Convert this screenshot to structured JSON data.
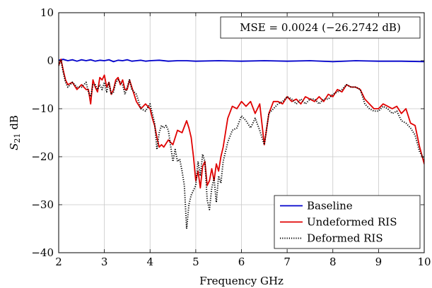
{
  "chart_data": {
    "type": "line",
    "xlabel": "Frequency GHz",
    "ylabel_main": "S",
    "ylabel_sub": "21",
    "ylabel_unit": " dB",
    "xlim": [
      2,
      10
    ],
    "ylim": [
      -40,
      10
    ],
    "x_ticks": [
      2,
      3,
      4,
      5,
      6,
      7,
      8,
      9,
      10
    ],
    "y_ticks": [
      -40,
      -30,
      -20,
      -10,
      0,
      10
    ],
    "x_tick_labels": [
      "2",
      "3",
      "4",
      "5",
      "6",
      "7",
      "8",
      "9",
      "10"
    ],
    "y_tick_labels": [
      "−40",
      "−30",
      "−20",
      "−10",
      "0",
      "10"
    ],
    "grid": true,
    "legend_position": "bottom-right",
    "annotation": "MSE = 0.0024 (−26.2742 dB)",
    "series": [
      {
        "name": "Baseline",
        "color": "#0000cc",
        "style": "solid",
        "x": [
          2.0,
          2.1,
          2.2,
          2.3,
          2.4,
          2.5,
          2.6,
          2.7,
          2.8,
          2.9,
          3.0,
          3.1,
          3.2,
          3.3,
          3.4,
          3.5,
          3.6,
          3.7,
          3.8,
          3.9,
          4.0,
          4.2,
          4.4,
          4.6,
          4.8,
          5.0,
          5.5,
          6.0,
          6.5,
          7.0,
          7.5,
          8.0,
          8.5,
          9.0,
          9.5,
          10.0
        ],
        "y": [
          0.1,
          0.3,
          0.0,
          0.2,
          -0.1,
          0.2,
          0.0,
          0.2,
          -0.1,
          0.1,
          0.0,
          0.2,
          -0.2,
          0.1,
          0.0,
          0.2,
          -0.1,
          0.0,
          0.1,
          -0.1,
          0.0,
          0.1,
          -0.1,
          0.0,
          0.0,
          -0.1,
          0.0,
          -0.1,
          0.0,
          -0.1,
          0.0,
          -0.2,
          0.0,
          -0.1,
          -0.1,
          -0.2
        ]
      },
      {
        "name": "Undeformed RIS",
        "color": "#e00000",
        "style": "solid",
        "x": [
          2.0,
          2.05,
          2.1,
          2.15,
          2.2,
          2.3,
          2.4,
          2.5,
          2.6,
          2.65,
          2.7,
          2.75,
          2.8,
          2.85,
          2.9,
          2.95,
          3.0,
          3.05,
          3.1,
          3.15,
          3.2,
          3.25,
          3.3,
          3.35,
          3.4,
          3.45,
          3.5,
          3.55,
          3.6,
          3.7,
          3.8,
          3.9,
          4.0,
          4.05,
          4.1,
          4.15,
          4.2,
          4.25,
          4.3,
          4.4,
          4.5,
          4.6,
          4.7,
          4.8,
          4.85,
          4.9,
          4.95,
          5.0,
          5.05,
          5.1,
          5.15,
          5.2,
          5.25,
          5.3,
          5.35,
          5.4,
          5.45,
          5.5,
          5.55,
          5.6,
          5.7,
          5.8,
          5.9,
          6.0,
          6.1,
          6.2,
          6.3,
          6.4,
          6.5,
          6.6,
          6.7,
          6.8,
          6.9,
          7.0,
          7.1,
          7.2,
          7.3,
          7.4,
          7.5,
          7.6,
          7.7,
          7.8,
          7.9,
          8.0,
          8.1,
          8.2,
          8.3,
          8.4,
          8.5,
          8.6,
          8.7,
          8.8,
          8.9,
          9.0,
          9.1,
          9.2,
          9.3,
          9.4,
          9.5,
          9.6,
          9.7,
          9.8,
          9.9,
          10.0
        ],
        "y": [
          -1.0,
          0.3,
          -2.0,
          -4.0,
          -5.0,
          -4.5,
          -6.0,
          -5.0,
          -6.0,
          -6.0,
          -9.0,
          -4.0,
          -5.5,
          -6.5,
          -3.5,
          -4.0,
          -3.0,
          -5.5,
          -4.5,
          -7.0,
          -6.0,
          -4.0,
          -3.5,
          -5.0,
          -4.0,
          -6.0,
          -6.0,
          -4.0,
          -5.5,
          -8.5,
          -10.0,
          -9.0,
          -10.0,
          -12.0,
          -13.5,
          -16.0,
          -18.0,
          -17.5,
          -18.0,
          -16.5,
          -17.5,
          -14.5,
          -15.0,
          -12.5,
          -14.0,
          -16.0,
          -20.0,
          -25.0,
          -23.0,
          -26.5,
          -22.0,
          -21.0,
          -26.0,
          -25.0,
          -22.5,
          -25.0,
          -21.5,
          -23.0,
          -20.0,
          -18.0,
          -12.0,
          -9.5,
          -10.0,
          -8.5,
          -9.5,
          -8.5,
          -11.0,
          -9.0,
          -17.5,
          -11.0,
          -8.5,
          -8.5,
          -9.0,
          -7.5,
          -8.5,
          -8.0,
          -9.0,
          -7.5,
          -8.0,
          -8.5,
          -7.5,
          -8.5,
          -7.0,
          -7.5,
          -6.0,
          -6.5,
          -5.0,
          -5.5,
          -5.5,
          -6.0,
          -8.0,
          -9.0,
          -10.0,
          -10.0,
          -9.0,
          -9.5,
          -10.0,
          -9.5,
          -11.0,
          -10.0,
          -13.0,
          -13.5,
          -18.0,
          -21.5
        ]
      },
      {
        "name": "Deformed RIS",
        "color": "#000000",
        "style": "dotted",
        "x": [
          2.0,
          2.05,
          2.1,
          2.15,
          2.2,
          2.3,
          2.4,
          2.5,
          2.6,
          2.65,
          2.7,
          2.75,
          2.8,
          2.85,
          2.9,
          2.95,
          3.0,
          3.05,
          3.1,
          3.15,
          3.2,
          3.25,
          3.3,
          3.35,
          3.4,
          3.45,
          3.5,
          3.55,
          3.6,
          3.7,
          3.8,
          3.9,
          4.0,
          4.05,
          4.1,
          4.15,
          4.2,
          4.25,
          4.3,
          4.35,
          4.4,
          4.5,
          4.55,
          4.6,
          4.65,
          4.7,
          4.75,
          4.8,
          4.85,
          4.9,
          4.95,
          5.0,
          5.05,
          5.1,
          5.15,
          5.2,
          5.25,
          5.3,
          5.35,
          5.4,
          5.45,
          5.5,
          5.55,
          5.6,
          5.7,
          5.8,
          5.9,
          6.0,
          6.1,
          6.2,
          6.3,
          6.4,
          6.5,
          6.6,
          6.7,
          6.8,
          6.9,
          7.0,
          7.1,
          7.2,
          7.3,
          7.4,
          7.5,
          7.6,
          7.7,
          7.8,
          7.9,
          8.0,
          8.1,
          8.2,
          8.3,
          8.4,
          8.5,
          8.6,
          8.7,
          8.8,
          8.9,
          9.0,
          9.1,
          9.2,
          9.3,
          9.4,
          9.5,
          9.6,
          9.7,
          9.8,
          9.9,
          10.0
        ],
        "y": [
          -1.0,
          0.2,
          -2.5,
          -4.5,
          -5.5,
          -4.5,
          -5.5,
          -5.5,
          -4.5,
          -6.5,
          -7.5,
          -5.0,
          -5.0,
          -6.0,
          -5.0,
          -6.0,
          -4.5,
          -6.5,
          -4.5,
          -7.0,
          -6.5,
          -4.5,
          -4.0,
          -4.5,
          -5.0,
          -7.0,
          -5.5,
          -4.0,
          -6.0,
          -7.0,
          -10.0,
          -10.5,
          -9.0,
          -11.0,
          -13.0,
          -18.5,
          -15.0,
          -13.5,
          -14.0,
          -13.5,
          -14.5,
          -21.0,
          -18.5,
          -21.0,
          -20.5,
          -23.0,
          -26.0,
          -35.0,
          -30.0,
          -28.0,
          -27.0,
          -26.0,
          -21.0,
          -24.0,
          -19.5,
          -21.0,
          -29.0,
          -31.0,
          -26.5,
          -24.5,
          -29.5,
          -24.0,
          -25.5,
          -21.0,
          -17.0,
          -14.5,
          -14.0,
          -11.5,
          -12.5,
          -14.0,
          -12.0,
          -14.5,
          -17.5,
          -11.0,
          -10.0,
          -9.0,
          -8.5,
          -7.5,
          -8.0,
          -9.0,
          -8.0,
          -9.0,
          -8.0,
          -8.0,
          -9.0,
          -8.0,
          -8.0,
          -7.0,
          -6.5,
          -6.0,
          -5.0,
          -5.5,
          -5.5,
          -6.0,
          -9.0,
          -10.0,
          -10.5,
          -10.5,
          -9.5,
          -10.0,
          -11.0,
          -10.5,
          -12.5,
          -13.0,
          -14.0,
          -15.5,
          -19.0,
          -20.5
        ]
      }
    ]
  }
}
